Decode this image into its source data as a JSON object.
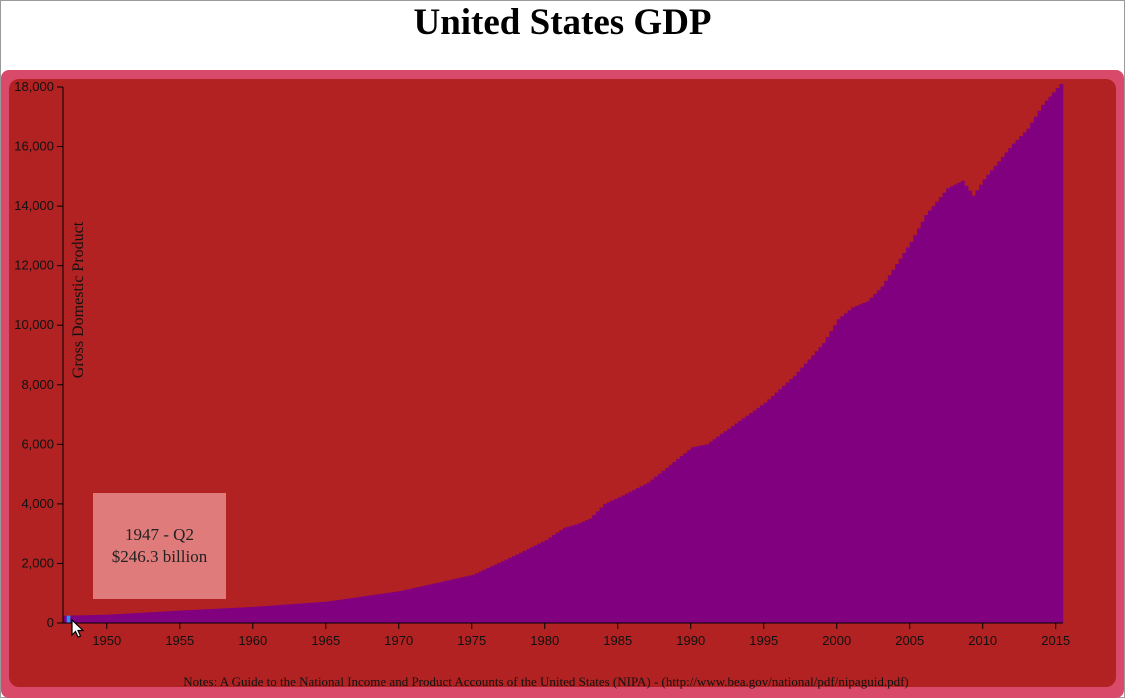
{
  "page": {
    "title": "United States GDP"
  },
  "tooltip": {
    "period": "1947 - Q2",
    "value": "$246.3 billion"
  },
  "notes": "Notes: A Guide to the National Income and Product Accounts of the United States (NIPA) - (http://www.bea.gov/national/pdf/nipaguid.pdf)",
  "colors": {
    "panel": "#b22222",
    "border": "#d94a6a",
    "bar": "#800080",
    "bar_highlight": "#2196f3",
    "tooltip_bg": "#e07b7b"
  },
  "chart_data": {
    "type": "bar",
    "title": "United States GDP",
    "ylabel": "Gross Domestic Product",
    "xlabel": "",
    "ylim": [
      0,
      18000
    ],
    "xlim": [
      1947.0,
      2015.5
    ],
    "y_ticks": [
      "0",
      "2,000",
      "4,000",
      "6,000",
      "8,000",
      "10,000",
      "12,000",
      "14,000",
      "16,000",
      "18,000"
    ],
    "x_ticks": [
      "1950",
      "1955",
      "1960",
      "1965",
      "1970",
      "1975",
      "1980",
      "1985",
      "1990",
      "1995",
      "2000",
      "2005",
      "2010",
      "2015"
    ],
    "grid": false,
    "units": "billions of dollars",
    "start_quarter": "1947-Q1",
    "highlighted_quarter": "1947-Q2",
    "anchors": [
      [
        1947.0,
        243.1
      ],
      [
        1947.25,
        246.3
      ],
      [
        1950,
        280
      ],
      [
        1955,
        420
      ],
      [
        1960,
        543
      ],
      [
        1965,
        720
      ],
      [
        1970,
        1073
      ],
      [
        1975,
        1620
      ],
      [
        1978,
        2300
      ],
      [
        1980,
        2789
      ],
      [
        1981.25,
        3200
      ],
      [
        1982,
        3300
      ],
      [
        1983,
        3500
      ],
      [
        1984,
        4000
      ],
      [
        1985,
        4220
      ],
      [
        1987,
        4720
      ],
      [
        1990,
        5900
      ],
      [
        1991,
        6000
      ],
      [
        1993,
        6700
      ],
      [
        1995,
        7400
      ],
      [
        1997,
        8300
      ],
      [
        1999,
        9400
      ],
      [
        2000,
        10200
      ],
      [
        2001,
        10600
      ],
      [
        2002,
        10800
      ],
      [
        2003,
        11300
      ],
      [
        2005,
        12800
      ],
      [
        2006,
        13700
      ],
      [
        2007.5,
        14600
      ],
      [
        2008.5,
        14850
      ],
      [
        2009.25,
        14350
      ],
      [
        2010,
        14900
      ],
      [
        2011,
        15500
      ],
      [
        2012,
        16100
      ],
      [
        2013,
        16600
      ],
      [
        2014,
        17400
      ],
      [
        2015.25,
        18100
      ]
    ]
  }
}
